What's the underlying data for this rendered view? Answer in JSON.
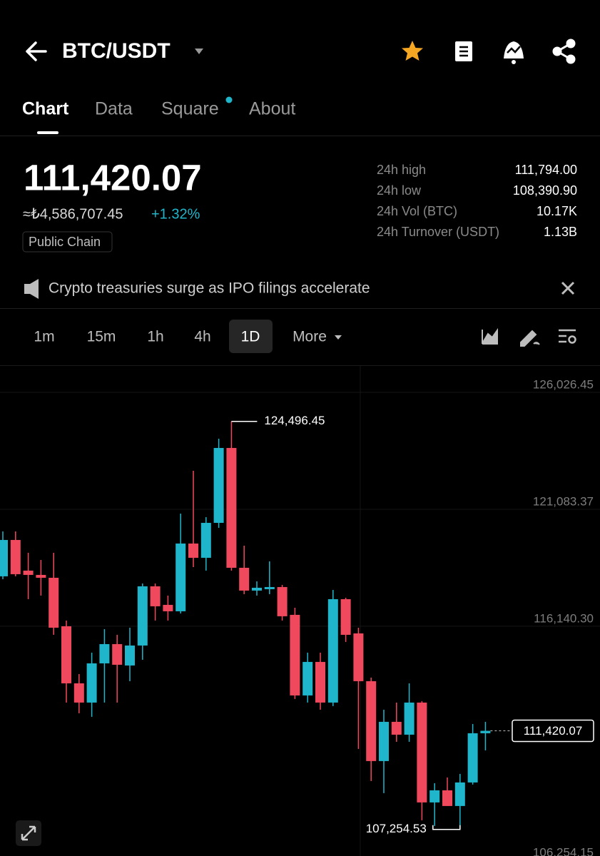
{
  "header": {
    "pair": "BTC/USDT"
  },
  "tabs": [
    "Chart",
    "Data",
    "Square",
    "About"
  ],
  "ticker": {
    "price": "111,420.07",
    "fiat": "≈₺4,586,707.45",
    "change": "+1.32%",
    "tag": "Public Chain"
  },
  "stats": [
    {
      "label": "24h high",
      "value": "111,794.00"
    },
    {
      "label": "24h low",
      "value": "108,390.90"
    },
    {
      "label": "24h Vol (BTC)",
      "value": "10.17K"
    },
    {
      "label": "24h Turnover (USDT)",
      "value": "1.13B"
    }
  ],
  "news": "Crypto treasuries surge as IPO filings accelerate",
  "intervals": [
    "1m",
    "15m",
    "1h",
    "4h",
    "1D",
    "More"
  ],
  "chart_data": {
    "type": "candlestick",
    "up_color": "#1fb6cc",
    "down_color": "#f0485c",
    "open": [
      117949,
      119486,
      118190,
      118009,
      117888,
      115839,
      113427,
      112614,
      114271,
      115085,
      114181,
      115025,
      117527,
      116743,
      116472,
      119335,
      118732,
      120209,
      123374,
      118310,
      117346,
      117406,
      117496,
      116321,
      112915,
      114332,
      112614,
      116984,
      115537,
      113518,
      110142,
      111800,
      111257,
      112614,
      108394,
      108906,
      108243,
      109238,
      111318
    ],
    "high": [
      119847,
      119847,
      118943,
      118642,
      118943,
      116080,
      113819,
      114723,
      115718,
      115477,
      115778,
      117647,
      117647,
      117135,
      120601,
      122409,
      120450,
      123765,
      124496.45,
      119244,
      117737,
      118581,
      117587,
      116622,
      114723,
      114723,
      117376,
      117044,
      115778,
      113669,
      112312,
      112614,
      113427,
      112674,
      109207,
      109449,
      109600,
      111709,
      111800
    ],
    "low": [
      117828,
      117949,
      116984,
      117135,
      115477,
      112614,
      112162,
      112011,
      112614,
      112614,
      113518,
      114422,
      116080,
      116080,
      116381,
      118340,
      118190,
      119998,
      118190,
      117195,
      117135,
      117195,
      116080,
      112764,
      112614,
      112312,
      112463,
      115176,
      110655,
      109298,
      108786,
      110956,
      110956,
      107641,
      107399,
      108243,
      107254.53,
      109148,
      110594
    ],
    "close": [
      119486,
      118039,
      118009,
      117888,
      115778,
      113427,
      112614,
      114271,
      115085,
      114211,
      115025,
      117527,
      116683,
      116472,
      119335,
      118732,
      120209,
      123374,
      118310,
      117346,
      117466,
      117496,
      116261,
      112915,
      114332,
      112614,
      116984,
      115477,
      113518,
      110142,
      111800,
      111257,
      112614,
      108394,
      108906,
      108243,
      109238,
      111318,
      111420.07
    ],
    "ylim": [
      106130,
      126870
    ],
    "yticks": [
      {
        "value": 126026.45,
        "label": "126,026.45"
      },
      {
        "value": 121083.37,
        "label": "121,083.37"
      },
      {
        "value": 116140.3,
        "label": "116,140.30"
      },
      {
        "value": 106254.15,
        "label": "106,254.15"
      }
    ],
    "grid": true,
    "annotations": {
      "high": {
        "value": 124496.45,
        "label": "124,496.45"
      },
      "low": {
        "value": 107254.53,
        "label": "107,254.53"
      },
      "last": {
        "value": 111420.07,
        "label": "111,420.07"
      }
    }
  }
}
